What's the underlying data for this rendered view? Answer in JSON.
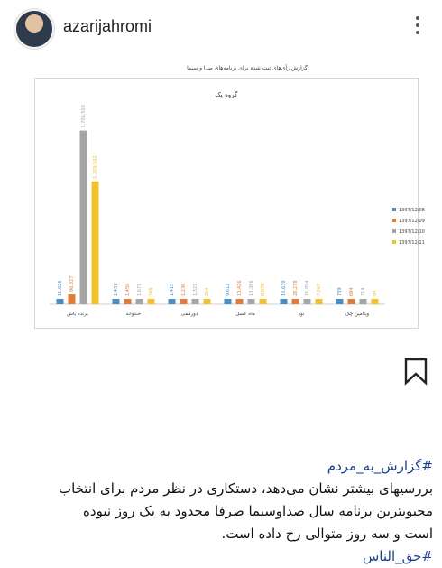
{
  "post": {
    "username": "azarijahromi",
    "caption_hashtag": "#گزارش_به_مردم",
    "caption_lines": [
      "بررسیهای بیشتر نشان می‌دهد، دستکاری در نظر مردم برای انتخاب",
      "محبوبترین برنامه سال صداوسیما صرفا محدود به یک روز نبوده",
      "است و سه روز متوالی رخ داده است."
    ],
    "caption_tag2": "#حق_الناس"
  },
  "report": {
    "title": "گزارش رأی‌های ثبت شده برای برنامه‌های صدا و سیما"
  },
  "chart_data": {
    "type": "bar",
    "title": "گروه یک",
    "categories": [
      "برنده باش",
      "خندوانه",
      "دورهمی",
      "ماه عسل",
      "نود",
      "ویتامین چک"
    ],
    "series": [
      {
        "name": "1397/12/08",
        "color": "#4a8fc2",
        "values": [
          11026,
          1437,
          1415,
          9612,
          16630,
          739
        ],
        "labels": [
          "11,026",
          "1,437",
          "1,415",
          "9,612",
          "16,630",
          "739"
        ]
      },
      {
        "name": "1397/12/09",
        "color": "#e07b39",
        "values": [
          96827,
          1450,
          1236,
          10426,
          28278,
          694
        ],
        "labels": [
          "96,827",
          "1,450",
          "1,236",
          "10,426",
          "28,278",
          "694"
        ]
      },
      {
        "name": "1397/12/10",
        "color": "#a5a5a5",
        "values": [
          1708503,
          1671,
          1321,
          10386,
          15854,
          714
        ],
        "labels": [
          "1,708,503",
          "1,671",
          "1,321",
          "10,386",
          "15,854",
          "714"
        ]
      },
      {
        "name": "1397/12/11",
        "color": "#f2c12e",
        "values": [
          1209502,
          248,
          254,
          8078,
          7267,
          84
        ],
        "labels": [
          "1,209,502",
          "248",
          "254",
          "8,078",
          "7,267",
          "84"
        ]
      }
    ],
    "ylim": [
      0,
      1900000
    ],
    "legend_position": "right",
    "grid": false
  }
}
